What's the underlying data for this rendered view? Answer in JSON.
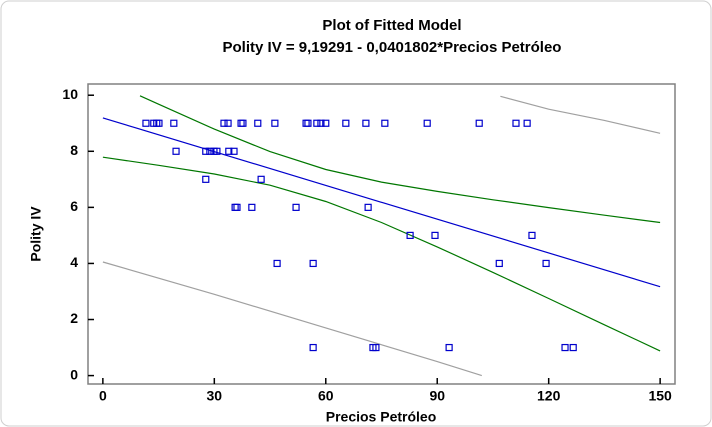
{
  "chart_data": {
    "type": "scatter",
    "title": "Plot of Fitted Model",
    "subtitle": "Polity IV = 9,19291 - 0,0401802*Precios Petróleo",
    "xlabel": "Precios Petróleo",
    "ylabel": "Polity IV",
    "xlim": [
      -4,
      154
    ],
    "ylim": [
      -0.3,
      10.4
    ],
    "xticks": [
      0,
      30,
      60,
      90,
      120,
      150
    ],
    "yticks": [
      0,
      2,
      4,
      6,
      8,
      10
    ],
    "points": {
      "color": "#0000cc",
      "x": [
        11.6,
        13.7,
        14.5,
        15.1,
        19.1,
        32.6,
        33.7,
        37.2,
        37.7,
        41.7,
        46.3,
        54.7,
        55.2,
        57.6,
        58.7,
        60.0,
        65.4,
        70.8,
        75.9,
        87.3,
        101.3,
        111.2,
        114.2,
        19.7,
        27.7,
        28.8,
        29.9,
        30.7,
        33.9,
        35.3,
        27.7,
        42.6,
        35.6,
        36.1,
        40.1,
        52.0,
        71.4,
        82.7,
        89.4,
        115.5,
        46.9,
        56.6,
        106.7,
        119.3,
        56.6,
        72.7,
        73.5,
        93.2,
        124.4,
        126.6
      ],
      "y": [
        9,
        9,
        9,
        9,
        9,
        9,
        9,
        9,
        9,
        9,
        9,
        9,
        9,
        9,
        9,
        9,
        9,
        9,
        9,
        9,
        9,
        9,
        9,
        8,
        8,
        8,
        8,
        8,
        8,
        8,
        7,
        7,
        6,
        6,
        6,
        6,
        6,
        5,
        5,
        5,
        4,
        4,
        4,
        4,
        1,
        1,
        1,
        1,
        1,
        1
      ]
    },
    "lines": [
      {
        "color": "#0000cc",
        "x": [
          0,
          150
        ],
        "values": [
          9.19,
          3.17
        ]
      },
      {
        "color": "#007700",
        "x": [
          10,
          15,
          30,
          45,
          60,
          75,
          90,
          105,
          120,
          135,
          150
        ],
        "values": [
          9.98,
          9.68,
          8.79,
          7.99,
          7.35,
          6.9,
          6.57,
          6.27,
          5.99,
          5.72,
          5.46
        ]
      },
      {
        "color": "#007700",
        "x": [
          0,
          15,
          30,
          45,
          60,
          75,
          90,
          105,
          120,
          135,
          150
        ],
        "values": [
          7.79,
          7.5,
          7.19,
          6.79,
          6.21,
          5.46,
          4.59,
          3.68,
          2.75,
          1.81,
          0.88
        ]
      },
      {
        "color": "#a0a0a0",
        "x": [
          0,
          30,
          60,
          90,
          102
        ],
        "values": [
          4.05,
          2.9,
          1.7,
          0.5,
          0
        ]
      },
      {
        "color": "#a0a0a0",
        "x": [
          107,
          120,
          135,
          150
        ],
        "values": [
          9.96,
          9.5,
          9.1,
          8.64
        ]
      }
    ]
  }
}
